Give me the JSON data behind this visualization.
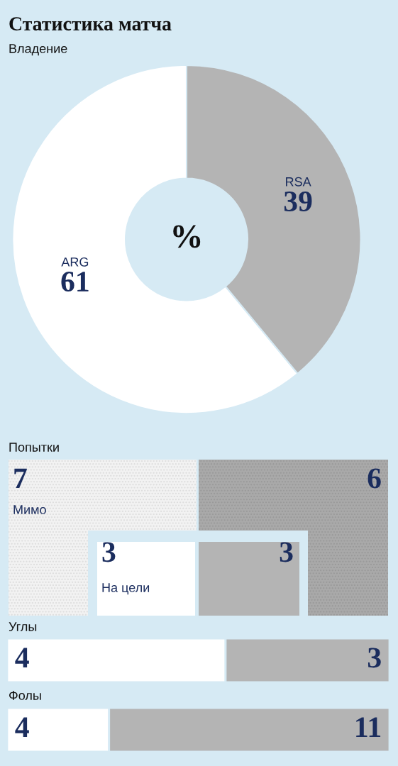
{
  "chart_data": [
    {
      "type": "donut",
      "title": "Статистика матча",
      "subtitle": "Владение",
      "categories": [
        "ARG",
        "RSA"
      ],
      "values": [
        61,
        39
      ],
      "colors": [
        "#ffffff",
        "#b4b4b4"
      ],
      "data_labels": true,
      "annotations": [
        "%"
      ]
    },
    {
      "type": "other",
      "title": "Попытки",
      "data_labels": true,
      "categories": [
        "Мимо",
        "На цели"
      ],
      "series": [
        {
          "colors": [
            "#f2f2f2",
            "#ffffff"
          ],
          "values": [
            7,
            3
          ]
        },
        {
          "colors": [
            "#a9a9a9",
            "#b4b4b4"
          ],
          "values": [
            6,
            3
          ]
        }
      ]
    },
    {
      "type": "bar",
      "orientation": "horizontal",
      "stacked": true,
      "data_labels": true,
      "title": "Углы",
      "categories": [
        null
      ],
      "series": [
        {
          "color": "#ffffff",
          "values": [
            4
          ]
        },
        {
          "color": "#b4b4b4",
          "values": [
            3
          ]
        }
      ]
    },
    {
      "type": "bar",
      "orientation": "horizontal",
      "stacked": true,
      "data_labels": true,
      "title": "Фолы",
      "categories": [
        null
      ],
      "series": [
        {
          "color": "#ffffff",
          "values": [
            4
          ]
        },
        {
          "color": "#b4b4b4",
          "values": [
            11
          ]
        }
      ]
    }
  ]
}
